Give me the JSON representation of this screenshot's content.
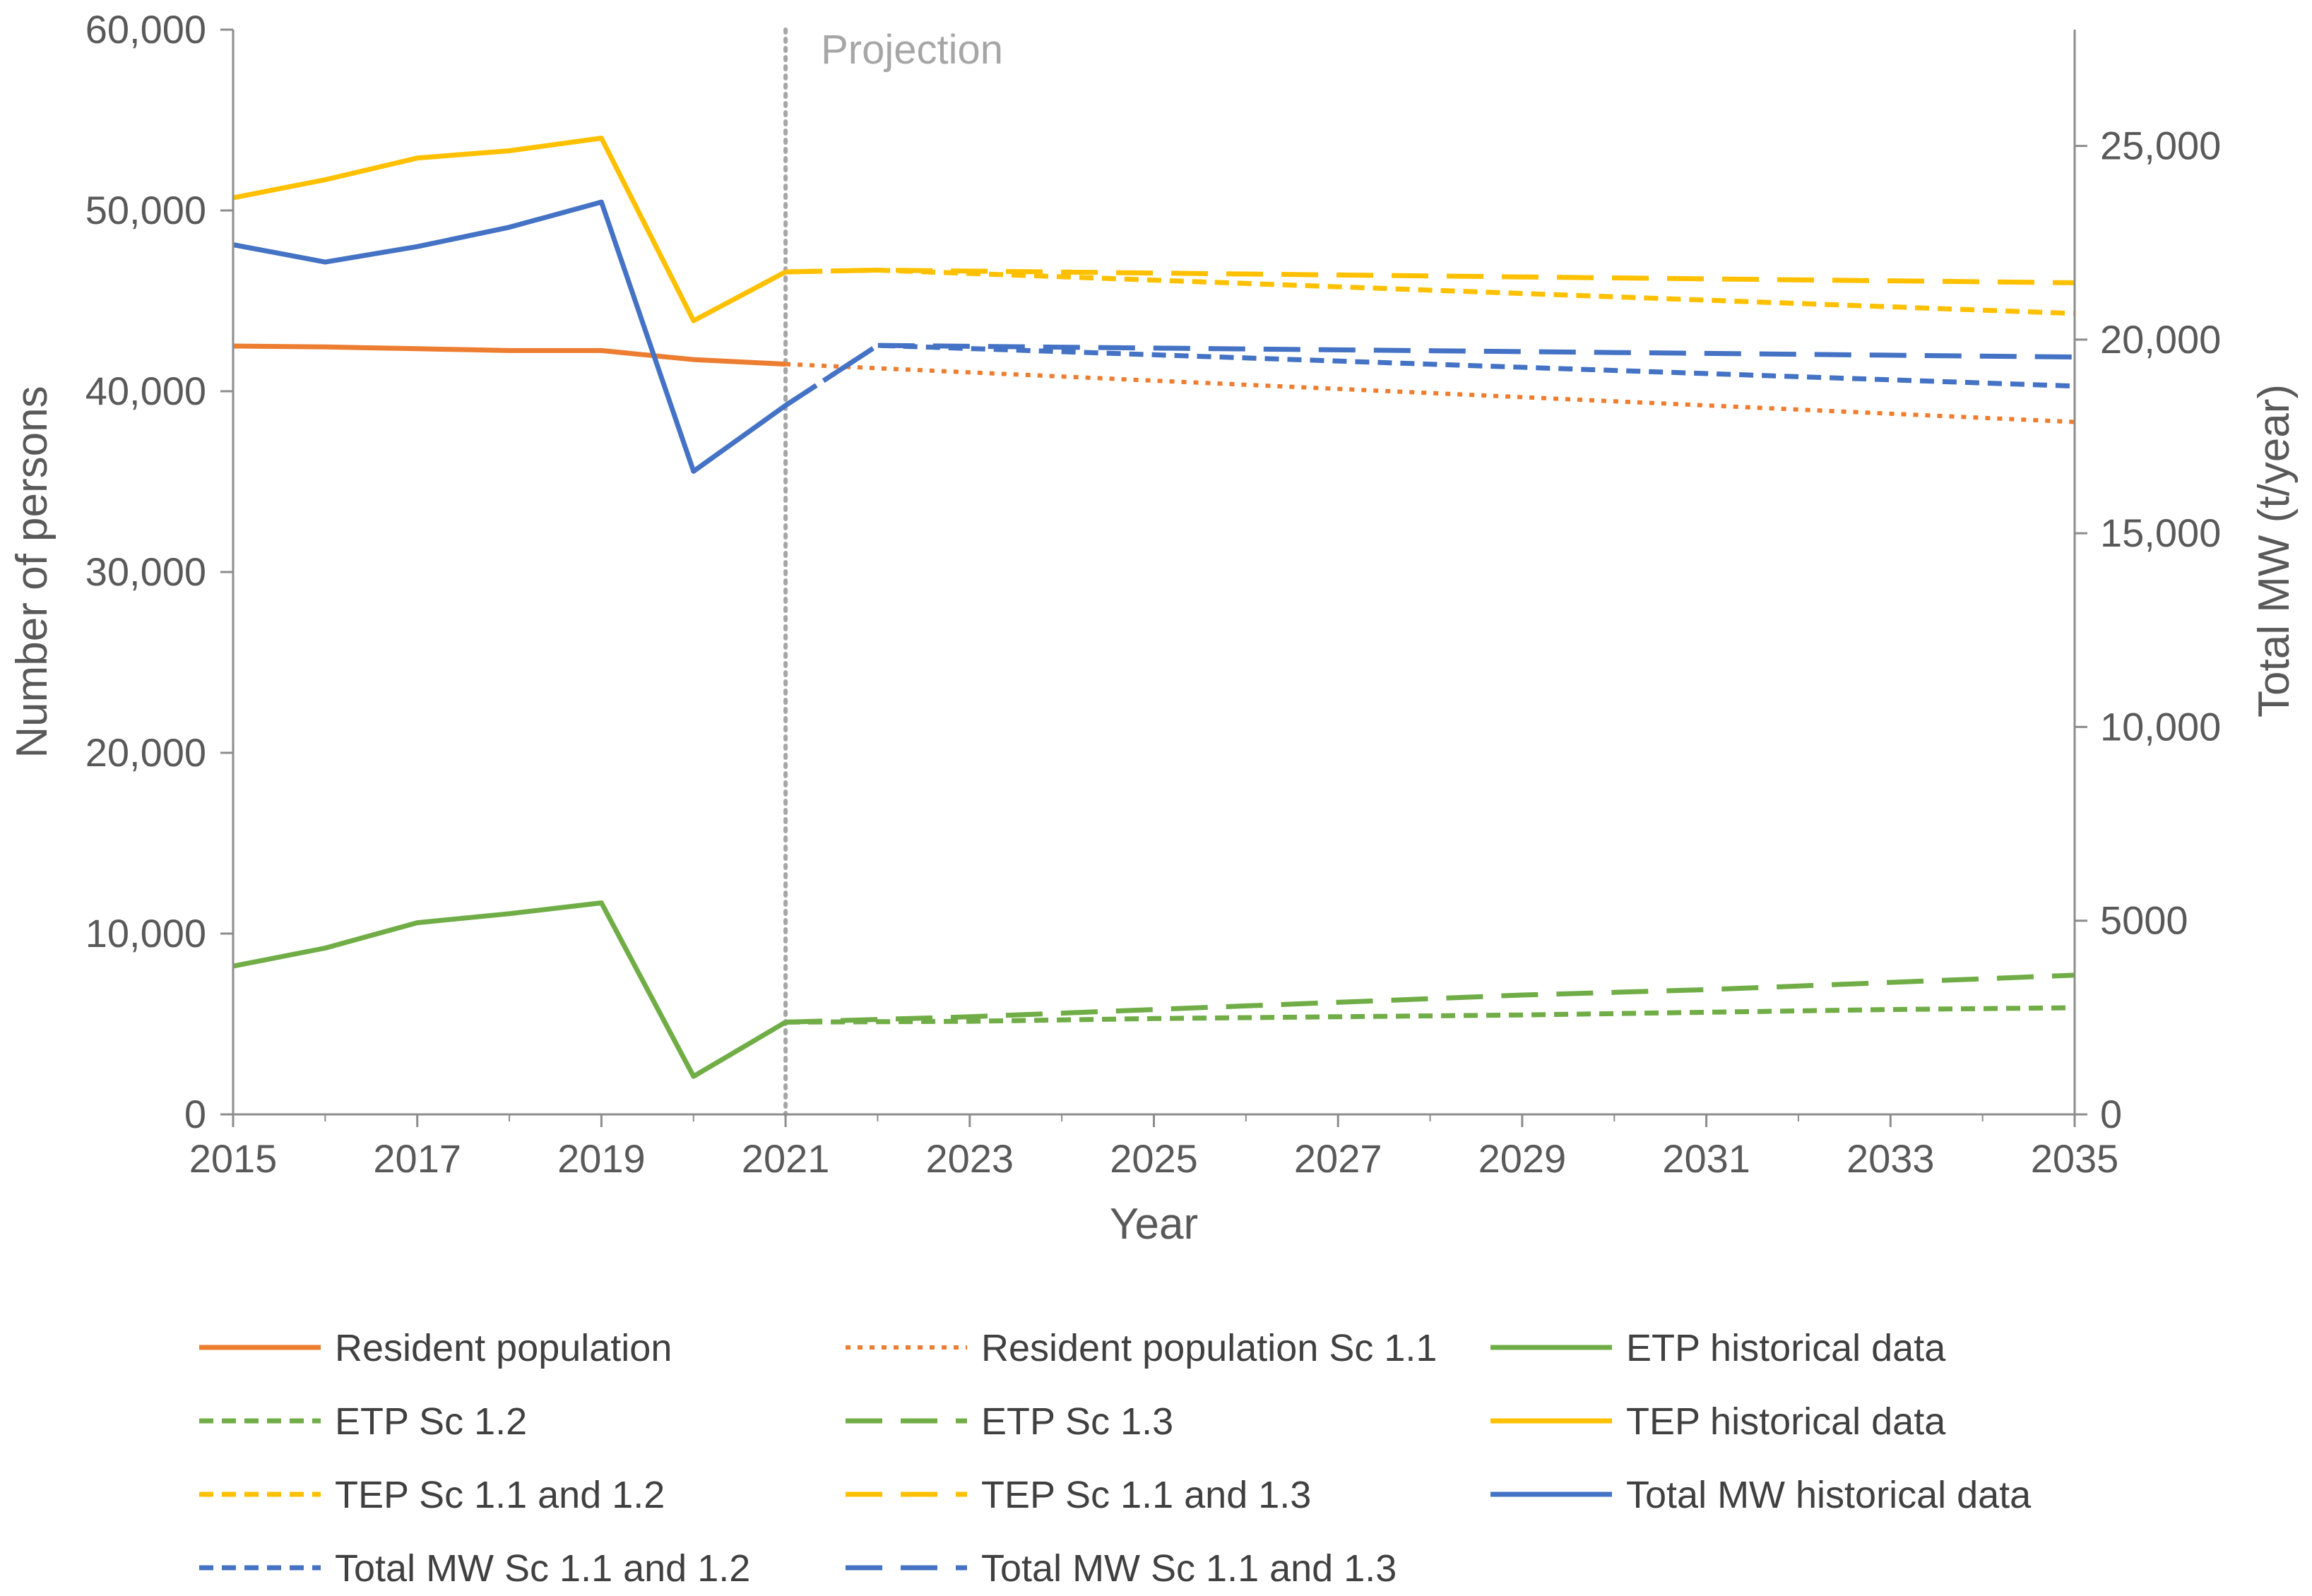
{
  "chart_data": {
    "type": "line",
    "xlabel": "Year",
    "ylabel": "Number of persons",
    "y2label": "Total MW (t/year)",
    "xlim": [
      2015,
      2035
    ],
    "ylim": [
      0,
      60000
    ],
    "y2lim": [
      0,
      28000
    ],
    "x_ticks": [
      "2015",
      "2017",
      "2019",
      "2021",
      "2023",
      "2025",
      "2027",
      "2029",
      "2031",
      "2033",
      "2035"
    ],
    "y_ticks": [
      "0",
      "10,000",
      "20,000",
      "30,000",
      "40,000",
      "50,000",
      "60,000"
    ],
    "y2_ticks": [
      "0",
      "5000",
      "10,000",
      "15,000",
      "20,000",
      "25,000"
    ],
    "annotation": {
      "text": "Projection",
      "x": 2021
    },
    "series": [
      {
        "name": "Resident population",
        "axis": "left",
        "color": "#ED7D31",
        "style": "solid",
        "x": [
          2015,
          2016,
          2017,
          2018,
          2019,
          2020,
          2021
        ],
        "y": [
          42500,
          42450,
          42350,
          42250,
          42250,
          41750,
          41500
        ]
      },
      {
        "name": "Resident population Sc 1.1",
        "axis": "left",
        "color": "#ED7D31",
        "style": "dotted",
        "x": [
          2021,
          2035
        ],
        "y": [
          41500,
          38300
        ]
      },
      {
        "name": "ETP historical data",
        "axis": "left",
        "color": "#70AD47",
        "style": "solid",
        "x": [
          2015,
          2016,
          2017,
          2018,
          2019,
          2020,
          2021
        ],
        "y": [
          8200,
          9200,
          10600,
          11100,
          11700,
          2100,
          5100
        ]
      },
      {
        "name": "ETP Sc 1.2",
        "axis": "left",
        "color": "#70AD47",
        "style": "short-dash",
        "x": [
          2021,
          2023,
          2025,
          2027,
          2029,
          2031,
          2033,
          2035
        ],
        "y": [
          5100,
          5150,
          5300,
          5400,
          5500,
          5650,
          5800,
          5900
        ]
      },
      {
        "name": "ETP Sc 1.3",
        "axis": "left",
        "color": "#70AD47",
        "style": "long-dash",
        "x": [
          2021,
          2023,
          2025,
          2027,
          2029,
          2031,
          2033,
          2035
        ],
        "y": [
          5100,
          5400,
          5800,
          6200,
          6600,
          6900,
          7300,
          7700
        ]
      },
      {
        "name": "TEP historical data",
        "axis": "left",
        "color": "#FFC000",
        "style": "solid",
        "x": [
          2015,
          2016,
          2017,
          2018,
          2019,
          2020,
          2021
        ],
        "y": [
          50700,
          51700,
          52900,
          53300,
          54000,
          43900,
          46600
        ]
      },
      {
        "name": "TEP Sc 1.1 and 1.2",
        "axis": "left",
        "color": "#FFC000",
        "style": "short-dash",
        "x": [
          2021,
          2022,
          2035
        ],
        "y": [
          46600,
          46700,
          44300
        ]
      },
      {
        "name": "TEP Sc 1.1 and 1.3",
        "axis": "left",
        "color": "#FFC000",
        "style": "long-dash",
        "x": [
          2021,
          2022,
          2035
        ],
        "y": [
          46600,
          46700,
          46000
        ]
      },
      {
        "name": "Total MW historical data",
        "axis": "right",
        "color": "#4472C4",
        "style": "solid",
        "x": [
          2015,
          2016,
          2017,
          2018,
          2019,
          2020,
          2021
        ],
        "y": [
          22450,
          22000,
          22400,
          22900,
          23550,
          16600,
          18300
        ]
      },
      {
        "name": "Total MW Sc 1.1 and 1.2",
        "axis": "right",
        "color": "#4472C4",
        "style": "short-dash",
        "x": [
          2021,
          2022,
          2035
        ],
        "y": [
          18300,
          19850,
          18800
        ]
      },
      {
        "name": "Total MW Sc 1.1 and 1.3",
        "axis": "right",
        "color": "#4472C4",
        "style": "long-dash",
        "x": [
          2021,
          2022,
          2035
        ],
        "y": [
          18300,
          19850,
          19550
        ]
      }
    ]
  }
}
